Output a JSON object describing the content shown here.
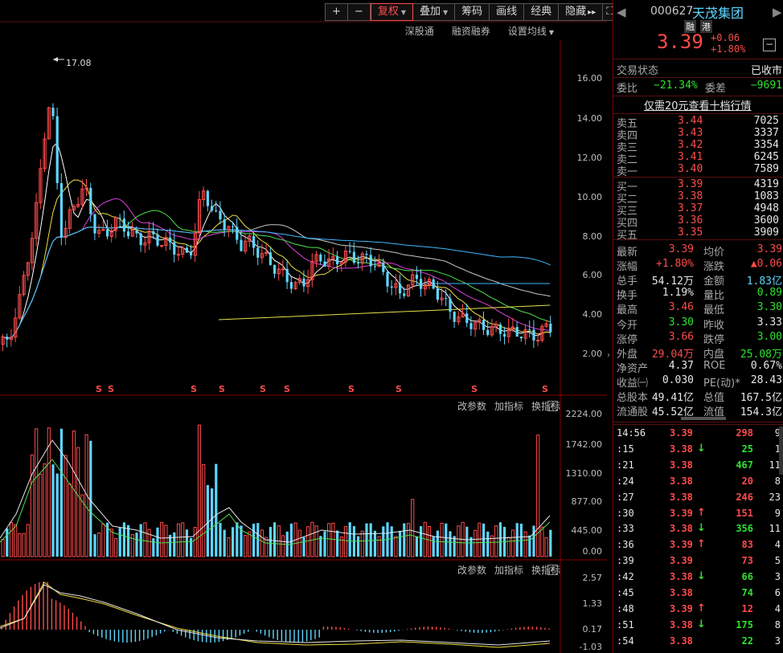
{
  "toolbar": {
    "plus": "+",
    "minus": "−",
    "items": [
      {
        "label": "复权",
        "caret": true,
        "active": true
      },
      {
        "label": "叠加",
        "caret": true,
        "active": false
      },
      {
        "label": "筹码",
        "caret": false,
        "active": false
      },
      {
        "label": "画线",
        "caret": false,
        "active": false
      },
      {
        "label": "经典",
        "caret": false,
        "active": false
      },
      {
        "label": "隐藏",
        "caret": false,
        "active": false
      }
    ],
    "hide_arrows": "▸▸",
    "fullscreen": "⛶"
  },
  "subtools": {
    "a": "深股通",
    "b": "融资融券",
    "c": "设置均线"
  },
  "price_axis": [
    "16.00",
    "14.00",
    "12.00",
    "10.00",
    "8.00",
    "6.00",
    "4.00",
    "2.00"
  ],
  "high_label": "17.08",
  "volume_panel": {
    "tool1": "改参数",
    "tool2": "加指标",
    "tool3": "换指标",
    "close": "×",
    "axis": [
      "2224.00",
      "1742.00",
      "1310.00",
      "877.00",
      "445.00",
      "0.00"
    ]
  },
  "macd_panel": {
    "tool1": "改参数",
    "tool2": "加指标",
    "tool3": "换指标",
    "close": "×",
    "axis": [
      "2.57",
      "1.33",
      "0.17",
      "-1.03"
    ]
  },
  "s_marker": "S",
  "stock": {
    "code": "000627",
    "name": "天茂集团",
    "tag1": "融",
    "tag2": "港",
    "price": "3.39",
    "change": "+0.06",
    "pct": "+1.80%",
    "minus_btn": "−"
  },
  "status": {
    "label": "交易状态",
    "value": "已收市"
  },
  "weibi": {
    "label1": "委比",
    "value1": "−21.34%",
    "label2": "委差",
    "value2": "−9691"
  },
  "promo": "仅需20元查看十档行情",
  "sells": [
    {
      "label": "卖五",
      "price": "3.44",
      "vol": "7025"
    },
    {
      "label": "卖四",
      "price": "3.43",
      "vol": "3337"
    },
    {
      "label": "卖三",
      "price": "3.42",
      "vol": "3354"
    },
    {
      "label": "卖二",
      "price": "3.41",
      "vol": "6245"
    },
    {
      "label": "卖一",
      "price": "3.40",
      "vol": "7589"
    }
  ],
  "buys": [
    {
      "label": "买一",
      "price": "3.39",
      "vol": "4319"
    },
    {
      "label": "买二",
      "price": "3.38",
      "vol": "1083"
    },
    {
      "label": "买三",
      "price": "3.37",
      "vol": "4948"
    },
    {
      "label": "买四",
      "price": "3.36",
      "vol": "3600"
    },
    {
      "label": "买五",
      "price": "3.35",
      "vol": "3909"
    }
  ],
  "stats": [
    {
      "l1": "最新",
      "v1": "3.39",
      "c1": "red",
      "l2": "均价",
      "v2": "3.39",
      "c2": "red"
    },
    {
      "l1": "涨幅",
      "v1": "+1.80%",
      "c1": "red",
      "l2": "涨跌",
      "v2": "▲0.06",
      "c2": "red"
    },
    {
      "l1": "总手",
      "v1": "54.12万",
      "c1": "white",
      "l2": "金额",
      "v2": "1.83亿",
      "c2": "cyan"
    },
    {
      "l1": "换手",
      "v1": "1.19%",
      "c1": "white",
      "l2": "量比",
      "v2": "0.89",
      "c2": "green"
    },
    {
      "l1": "最高",
      "v1": "3.46",
      "c1": "red",
      "l2": "最低",
      "v2": "3.30",
      "c2": "green"
    },
    {
      "l1": "今开",
      "v1": "3.30",
      "c1": "green",
      "l2": "昨收",
      "v2": "3.33",
      "c2": "white"
    },
    {
      "l1": "涨停",
      "v1": "3.66",
      "c1": "red",
      "l2": "跌停",
      "v2": "3.00",
      "c2": "green"
    },
    {
      "l1": "外盘",
      "v1": "29.04万",
      "c1": "red",
      "l2": "内盘",
      "v2": "25.08万",
      "c2": "green"
    },
    {
      "l1": "净资产",
      "v1": "4.37",
      "c1": "white",
      "l2": "ROE",
      "v2": "0.67%",
      "c2": "white"
    },
    {
      "l1": "收益㈠",
      "v1": "0.030",
      "c1": "white",
      "l2": "PE(动)*",
      "v2": "28.43",
      "c2": "white"
    },
    {
      "l1": "总股本",
      "v1": "49.41亿",
      "c1": "white",
      "l2": "总值",
      "v2": "167.5亿",
      "c2": "white"
    },
    {
      "l1": "流通股",
      "v1": "45.52亿",
      "c1": "white",
      "l2": "流值",
      "v2": "154.3亿",
      "c2": "white"
    }
  ],
  "ticks": [
    {
      "t": "14:56",
      "p": "3.39",
      "pc": "red",
      "a": "",
      "v": "298",
      "vc": "red",
      "n": "9"
    },
    {
      "t": ":15",
      "p": "3.38",
      "pc": "red",
      "a": "down",
      "v": "25",
      "vc": "green",
      "n": "1"
    },
    {
      "t": ":21",
      "p": "3.38",
      "pc": "red",
      "a": "",
      "v": "467",
      "vc": "green",
      "n": "11"
    },
    {
      "t": ":24",
      "p": "3.38",
      "pc": "red",
      "a": "",
      "v": "20",
      "vc": "red",
      "n": "8"
    },
    {
      "t": ":27",
      "p": "3.38",
      "pc": "red",
      "a": "",
      "v": "246",
      "vc": "red",
      "n": "23"
    },
    {
      "t": ":30",
      "p": "3.39",
      "pc": "red",
      "a": "up",
      "v": "151",
      "vc": "red",
      "n": "9"
    },
    {
      "t": ":33",
      "p": "3.38",
      "pc": "red",
      "a": "down",
      "v": "356",
      "vc": "green",
      "n": "11"
    },
    {
      "t": ":36",
      "p": "3.39",
      "pc": "red",
      "a": "up",
      "v": "83",
      "vc": "red",
      "n": "4"
    },
    {
      "t": ":39",
      "p": "3.39",
      "pc": "red",
      "a": "",
      "v": "73",
      "vc": "red",
      "n": "5"
    },
    {
      "t": ":42",
      "p": "3.38",
      "pc": "red",
      "a": "down",
      "v": "66",
      "vc": "green",
      "n": "3"
    },
    {
      "t": ":45",
      "p": "3.38",
      "pc": "red",
      "a": "",
      "v": "74",
      "vc": "green",
      "n": "6"
    },
    {
      "t": ":48",
      "p": "3.39",
      "pc": "red",
      "a": "up",
      "v": "12",
      "vc": "red",
      "n": "4"
    },
    {
      "t": ":51",
      "p": "3.38",
      "pc": "red",
      "a": "down",
      "v": "175",
      "vc": "green",
      "n": "8"
    },
    {
      "t": ":54",
      "p": "3.38",
      "pc": "red",
      "a": "",
      "v": "22",
      "vc": "green",
      "n": "3"
    }
  ],
  "colors": {
    "up": "#ff4b4b",
    "down": "#2fe22f",
    "cyan": "#5fd6ff",
    "bg": "#000000",
    "border": "#8a0000"
  }
}
